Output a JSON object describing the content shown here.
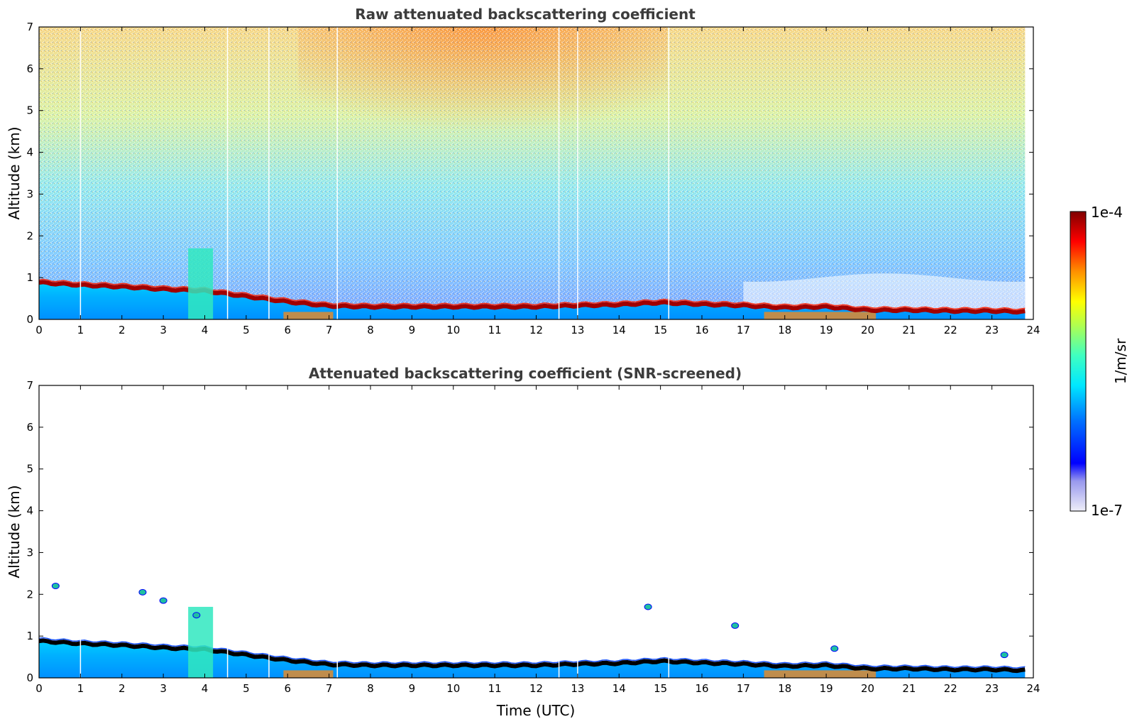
{
  "chart_data": [
    {
      "type": "heatmap",
      "title": "Raw attenuated backscattering coefficient",
      "xlabel": "",
      "ylabel": "Altitude (km)",
      "xlim": [
        0,
        24
      ],
      "ylim": [
        0,
        7
      ],
      "xticks": [
        "0",
        "1",
        "2",
        "3",
        "4",
        "5",
        "6",
        "7",
        "8",
        "9",
        "10",
        "11",
        "12",
        "13",
        "14",
        "15",
        "16",
        "17",
        "18",
        "19",
        "20",
        "21",
        "22",
        "23",
        "24"
      ],
      "yticks": [
        "0",
        "1",
        "2",
        "3",
        "4",
        "5",
        "6",
        "7"
      ],
      "layer_top_km": [
        [
          0,
          0.88
        ],
        [
          1,
          0.82
        ],
        [
          2,
          0.78
        ],
        [
          3,
          0.72
        ],
        [
          4,
          0.68
        ],
        [
          5,
          0.55
        ],
        [
          6,
          0.42
        ],
        [
          7,
          0.32
        ],
        [
          8,
          0.3
        ],
        [
          9,
          0.3
        ],
        [
          10,
          0.3
        ],
        [
          11,
          0.3
        ],
        [
          12,
          0.3
        ],
        [
          13,
          0.33
        ],
        [
          14,
          0.35
        ],
        [
          15,
          0.4
        ],
        [
          16,
          0.36
        ],
        [
          17,
          0.33
        ],
        [
          18,
          0.28
        ],
        [
          19,
          0.3
        ],
        [
          20,
          0.22
        ],
        [
          21,
          0.22
        ],
        [
          22,
          0.2
        ],
        [
          23,
          0.2
        ],
        [
          23.8,
          0.18
        ]
      ]
    },
    {
      "type": "heatmap",
      "title": "Attenuated backscattering coefficient (SNR-screened)",
      "xlabel": "Time (UTC)",
      "ylabel": "Altitude (km)",
      "xlim": [
        0,
        24
      ],
      "ylim": [
        0,
        7
      ],
      "xticks": [
        "0",
        "1",
        "2",
        "3",
        "4",
        "5",
        "6",
        "7",
        "8",
        "9",
        "10",
        "11",
        "12",
        "13",
        "14",
        "15",
        "16",
        "17",
        "18",
        "19",
        "20",
        "21",
        "22",
        "23",
        "24"
      ],
      "yticks": [
        "0",
        "1",
        "2",
        "3",
        "4",
        "5",
        "6",
        "7"
      ],
      "features_km": [
        {
          "t": 0.4,
          "z": 2.2
        },
        {
          "t": 2.5,
          "z": 2.05
        },
        {
          "t": 3.0,
          "z": 1.85
        },
        {
          "t": 3.8,
          "z": 1.5
        },
        {
          "t": 14.7,
          "z": 1.7
        },
        {
          "t": 16.8,
          "z": 1.25
        },
        {
          "t": 19.2,
          "z": 0.7
        },
        {
          "t": 23.3,
          "z": 0.55
        }
      ]
    }
  ],
  "colorbar": {
    "label": "1/m/sr",
    "max_label": "1e-4",
    "min_label": "1e-7",
    "scale": "log",
    "colors": [
      "#e8e8f4",
      "#aaaaee",
      "#0000ff",
      "#0080ff",
      "#00ffff",
      "#80ff80",
      "#ffff00",
      "#ff8000",
      "#ff0000",
      "#800000"
    ]
  }
}
